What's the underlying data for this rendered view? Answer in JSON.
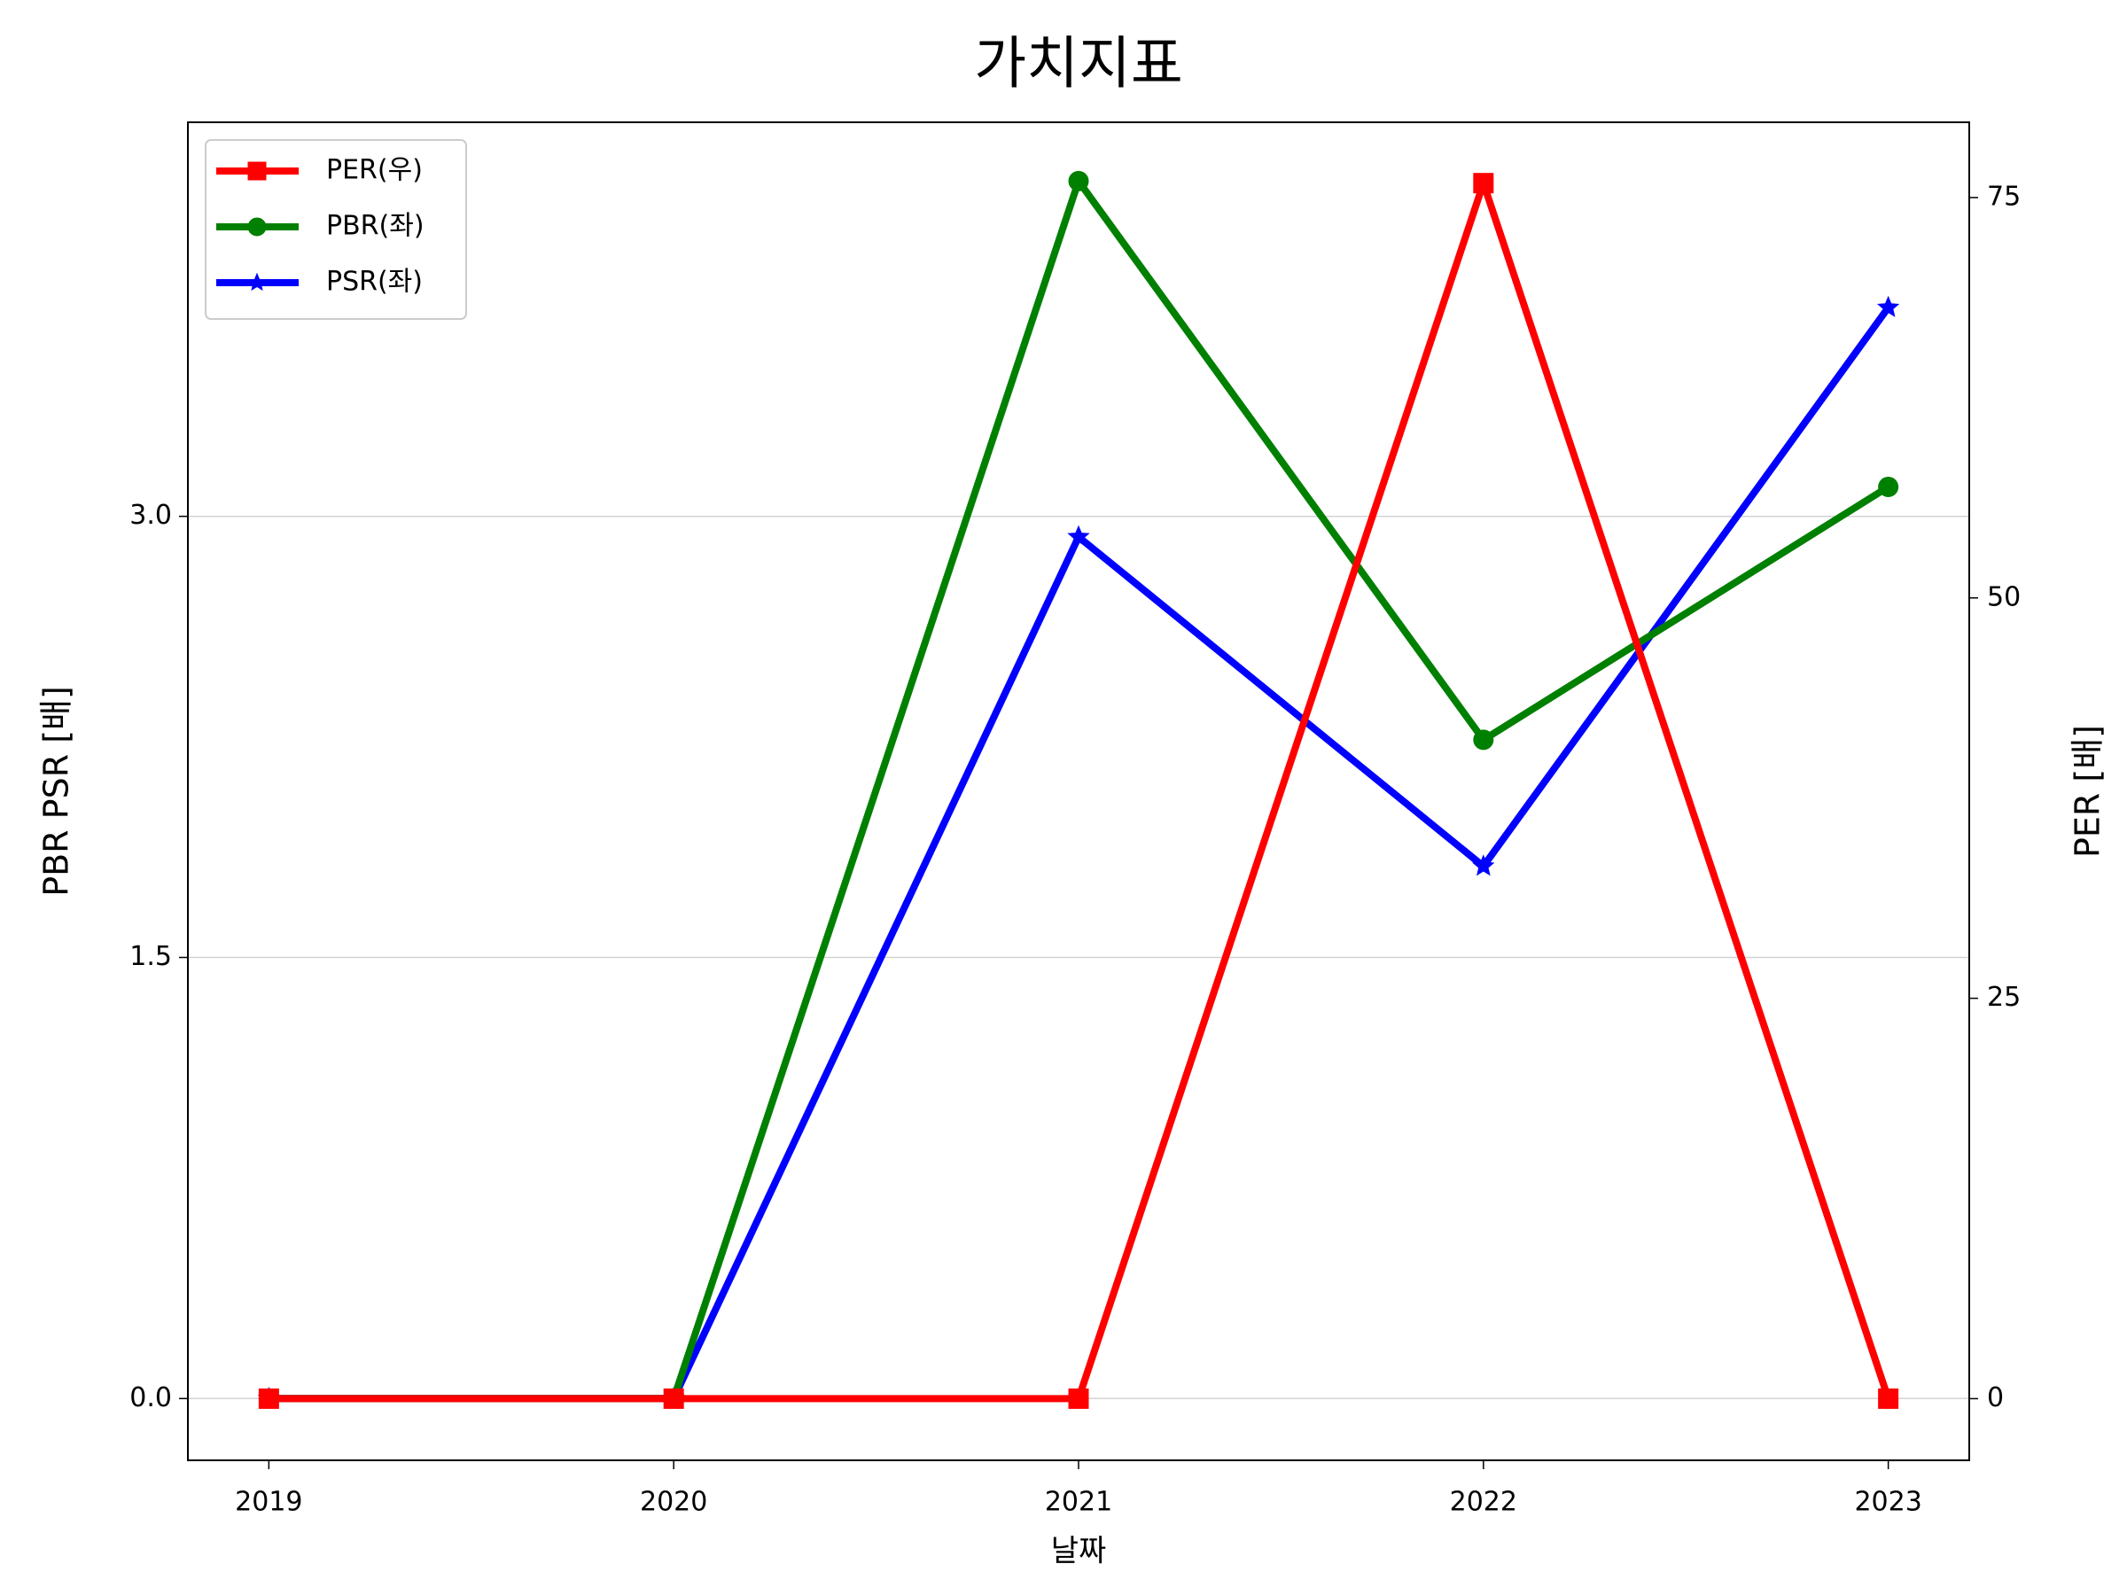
{
  "chart_data": {
    "type": "line",
    "title": "가치지표",
    "x_label": "날짜",
    "y_label": "PBR PSR [배]",
    "y2_label": "PER [배]",
    "y_label_color": "#008000",
    "y2_label_color": "#ff0000",
    "categories": [
      "2019",
      "2020",
      "2021",
      "2022",
      "2023"
    ],
    "series": [
      {
        "name": "PER(우)",
        "color": "#ff0000",
        "marker": "square",
        "axis": "y2",
        "values": [
          0,
          0,
          0,
          75.9,
          0
        ]
      },
      {
        "name": "PBR(좌)",
        "color": "#008000",
        "marker": "circle",
        "values": [
          0,
          0,
          4.14,
          2.24,
          3.1
        ]
      },
      {
        "name": "PSR(좌)",
        "color": "#0000ff",
        "marker": "star",
        "values": [
          0,
          0,
          2.93,
          1.81,
          3.71
        ]
      }
    ],
    "ylim": [
      -0.21,
      4.34
    ],
    "yticks": [
      {
        "value": 0,
        "label": "0.0"
      },
      1.5,
      {
        "value": 3,
        "label": "3.0"
      }
    ],
    "y2lim": [
      -3.85,
      79.7
    ],
    "y2ticks": [
      0,
      25,
      50,
      75
    ],
    "grid": true,
    "legend": "upper left"
  }
}
